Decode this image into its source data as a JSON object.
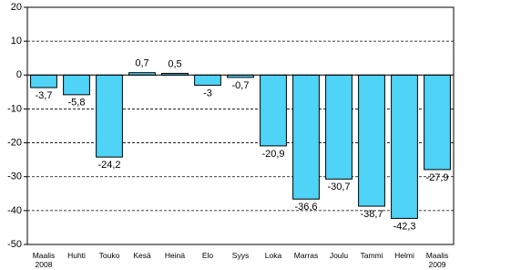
{
  "chart_data": {
    "type": "bar",
    "categories": [
      "Maalis 2008",
      "Huhti",
      "Touko",
      "Kesä",
      "Heinä",
      "Elo",
      "Syys",
      "Loka",
      "Marras",
      "Joulu",
      "Tammi",
      "Helmi",
      "Maalis 2009"
    ],
    "values": [
      -3.7,
      -5.8,
      -24.2,
      0.7,
      0.5,
      -3,
      -0.7,
      -20.9,
      -36.6,
      -30.7,
      -38.7,
      -42.3,
      -27.9
    ],
    "value_labels": [
      "-3,7",
      "-5,8",
      "-24,2",
      "0,7",
      "0,5",
      "-3",
      "-0,7",
      "-20,9",
      "-36,6",
      "-30,7",
      "-38,7",
      "-42,3",
      "-27,9"
    ],
    "color": "#4fd3f7",
    "ylim": [
      -50,
      20
    ],
    "yticks": [
      -50,
      -40,
      -30,
      -20,
      -10,
      0,
      10,
      20
    ],
    "grid": true
  }
}
